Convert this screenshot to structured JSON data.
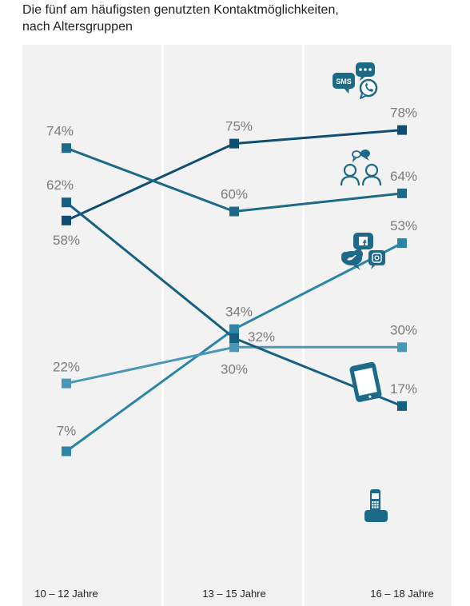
{
  "title_lines": [
    "Die fünf am häufigsten genutzten Kontaktmöglichkeiten,",
    "nach Altersgruppen"
  ],
  "colors": {
    "panel_background": "#f2f2f2",
    "panel_divider": "#ffffff",
    "label_grey": "#7b7b7b"
  },
  "chart_data": {
    "type": "line",
    "title": "Die fünf am häufigsten genutzten Kontaktmöglichkeiten, nach Altersgruppen",
    "categories": [
      "10 – 12 Jahre",
      "13 – 15 Jahre",
      "16 – 18 Jahre"
    ],
    "ylim": [
      0,
      100
    ],
    "unit": "%",
    "grid": false,
    "legend": "icons at line ends",
    "series": [
      {
        "icon": "messenger-sms-whatsapp-icon",
        "color": "#0f4e72",
        "values": [
          58,
          75,
          78
        ],
        "labels": [
          "58%",
          "75%",
          "78%"
        ]
      },
      {
        "icon": "people-talking-icon",
        "color": "#1d6988",
        "values": [
          74,
          60,
          64
        ],
        "labels": [
          "74%",
          "60%",
          "64%"
        ]
      },
      {
        "icon": "social-media-icon",
        "color": "#2a85a6",
        "values": [
          7,
          34,
          53
        ],
        "labels": [
          "7%",
          "34%",
          "53%"
        ]
      },
      {
        "icon": "smartphone-icon",
        "color": "#4a96b6",
        "values": [
          22,
          30,
          30
        ],
        "labels": [
          "22%",
          "30%",
          "30%"
        ]
      },
      {
        "icon": "landline-phone-icon",
        "color": "#175f82",
        "values": [
          62,
          32,
          17
        ],
        "labels": [
          "62%",
          "32%",
          "17%"
        ]
      }
    ]
  }
}
